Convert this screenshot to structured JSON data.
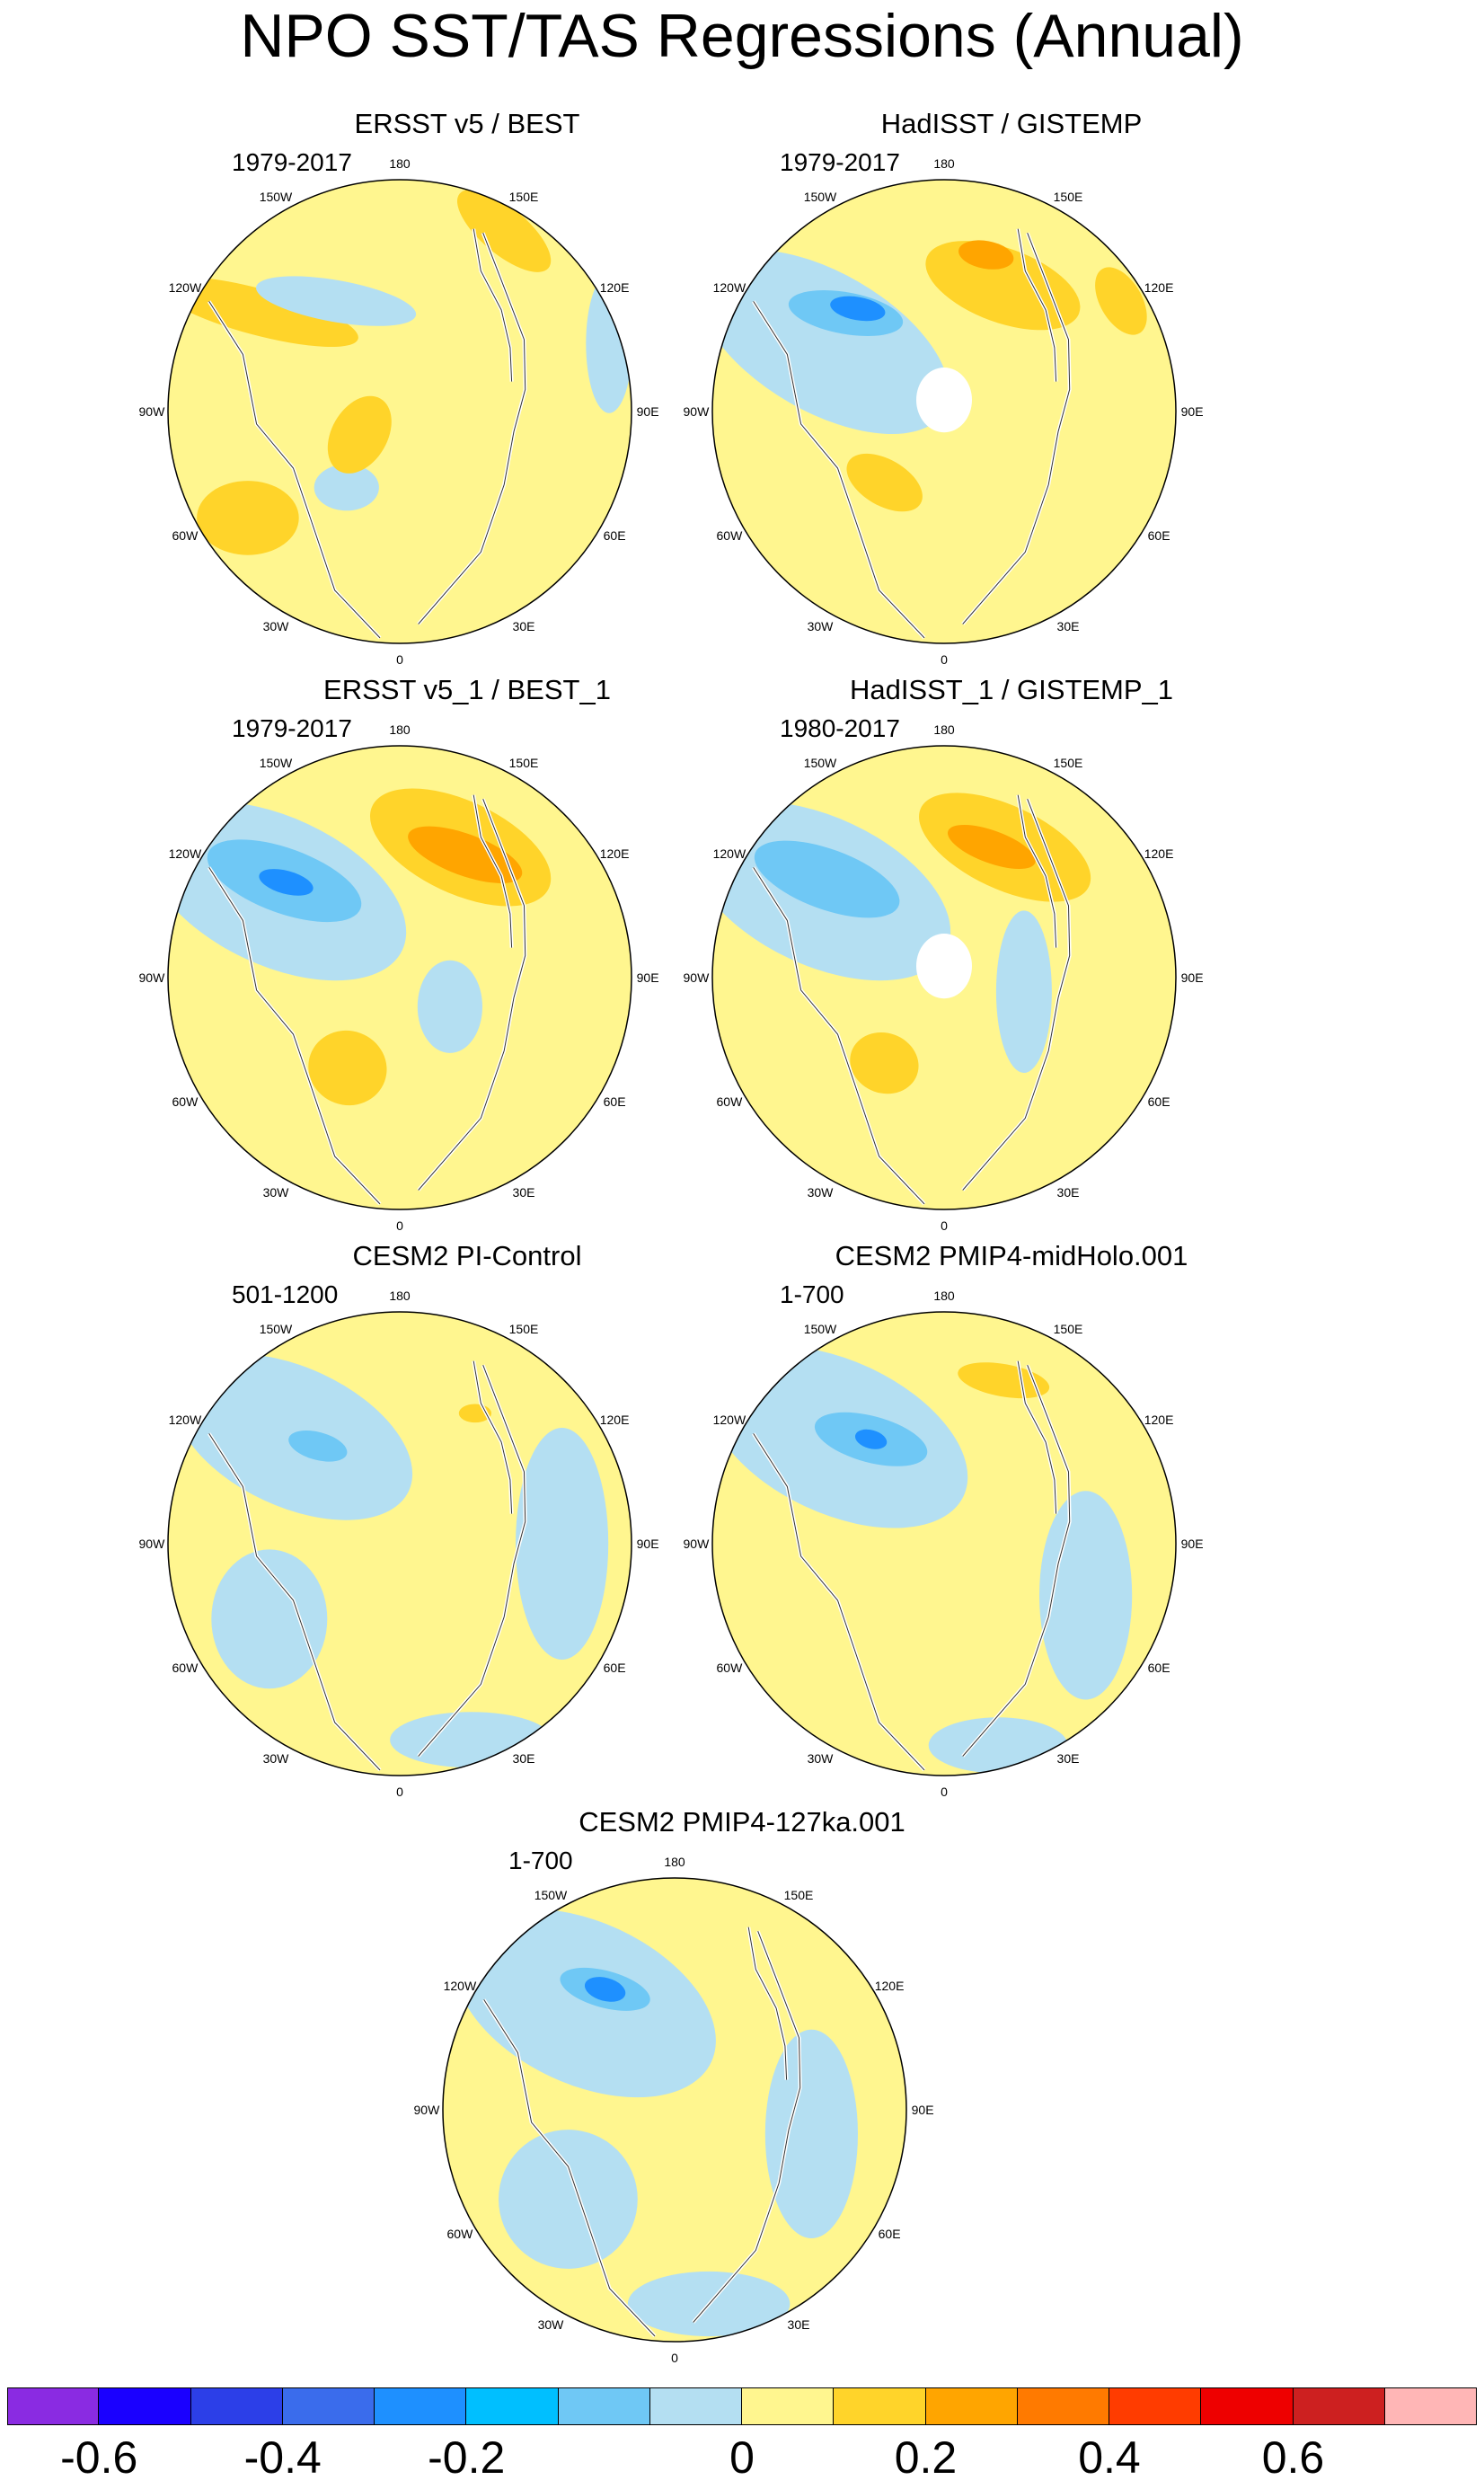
{
  "page_title": "NPO SST/TAS Regressions (Annual)",
  "colors": {
    "ocean_neutral_pos": "#fff68f",
    "land_neutral_pos": "#fff68f",
    "coast": "#ffffff",
    "outline": "#000000"
  },
  "longitude_labels": [
    "180",
    "150E",
    "120E",
    "90E",
    "60E",
    "30E",
    "0",
    "30W",
    "60W",
    "90W",
    "120W",
    "150W"
  ],
  "panels": [
    {
      "title": "ERSST v5 / BEST",
      "period": "1979-2017",
      "pattern": "obs_a"
    },
    {
      "title": "HadISST / GISTEMP",
      "period": "1979-2017",
      "pattern": "obs_b"
    },
    {
      "title": "ERSST v5_1 / BEST_1",
      "period": "1979-2017",
      "pattern": "obs_c"
    },
    {
      "title": "HadISST_1 / GISTEMP_1",
      "period": "1980-2017",
      "pattern": "obs_d"
    },
    {
      "title": "CESM2 PI-Control",
      "period": "501-1200",
      "pattern": "model_a"
    },
    {
      "title": "CESM2 PMIP4-midHolo.001",
      "period": "1-700",
      "pattern": "model_b"
    },
    {
      "title": "CESM2 PMIP4-127ka.001",
      "period": "1-700",
      "pattern": "model_c"
    }
  ],
  "colorbar": {
    "colors": [
      "#8a2be2",
      "#1a00ff",
      "#2c3fe8",
      "#3a6cec",
      "#1e90ff",
      "#00bfff",
      "#6fc8f5",
      "#b4dff2",
      "#fff68f",
      "#ffd42a",
      "#ffa500",
      "#ff7a00",
      "#ff3c00",
      "#ee0000",
      "#cd2020",
      "#ffb6b6"
    ],
    "tick_labels": [
      "-0.6",
      "-0.4",
      "-0.2",
      "0",
      "0.2",
      "0.4",
      "0.6"
    ],
    "tick_boundaries": [
      1,
      3,
      5,
      8,
      10,
      12,
      14
    ],
    "level_step": 0.1
  }
}
